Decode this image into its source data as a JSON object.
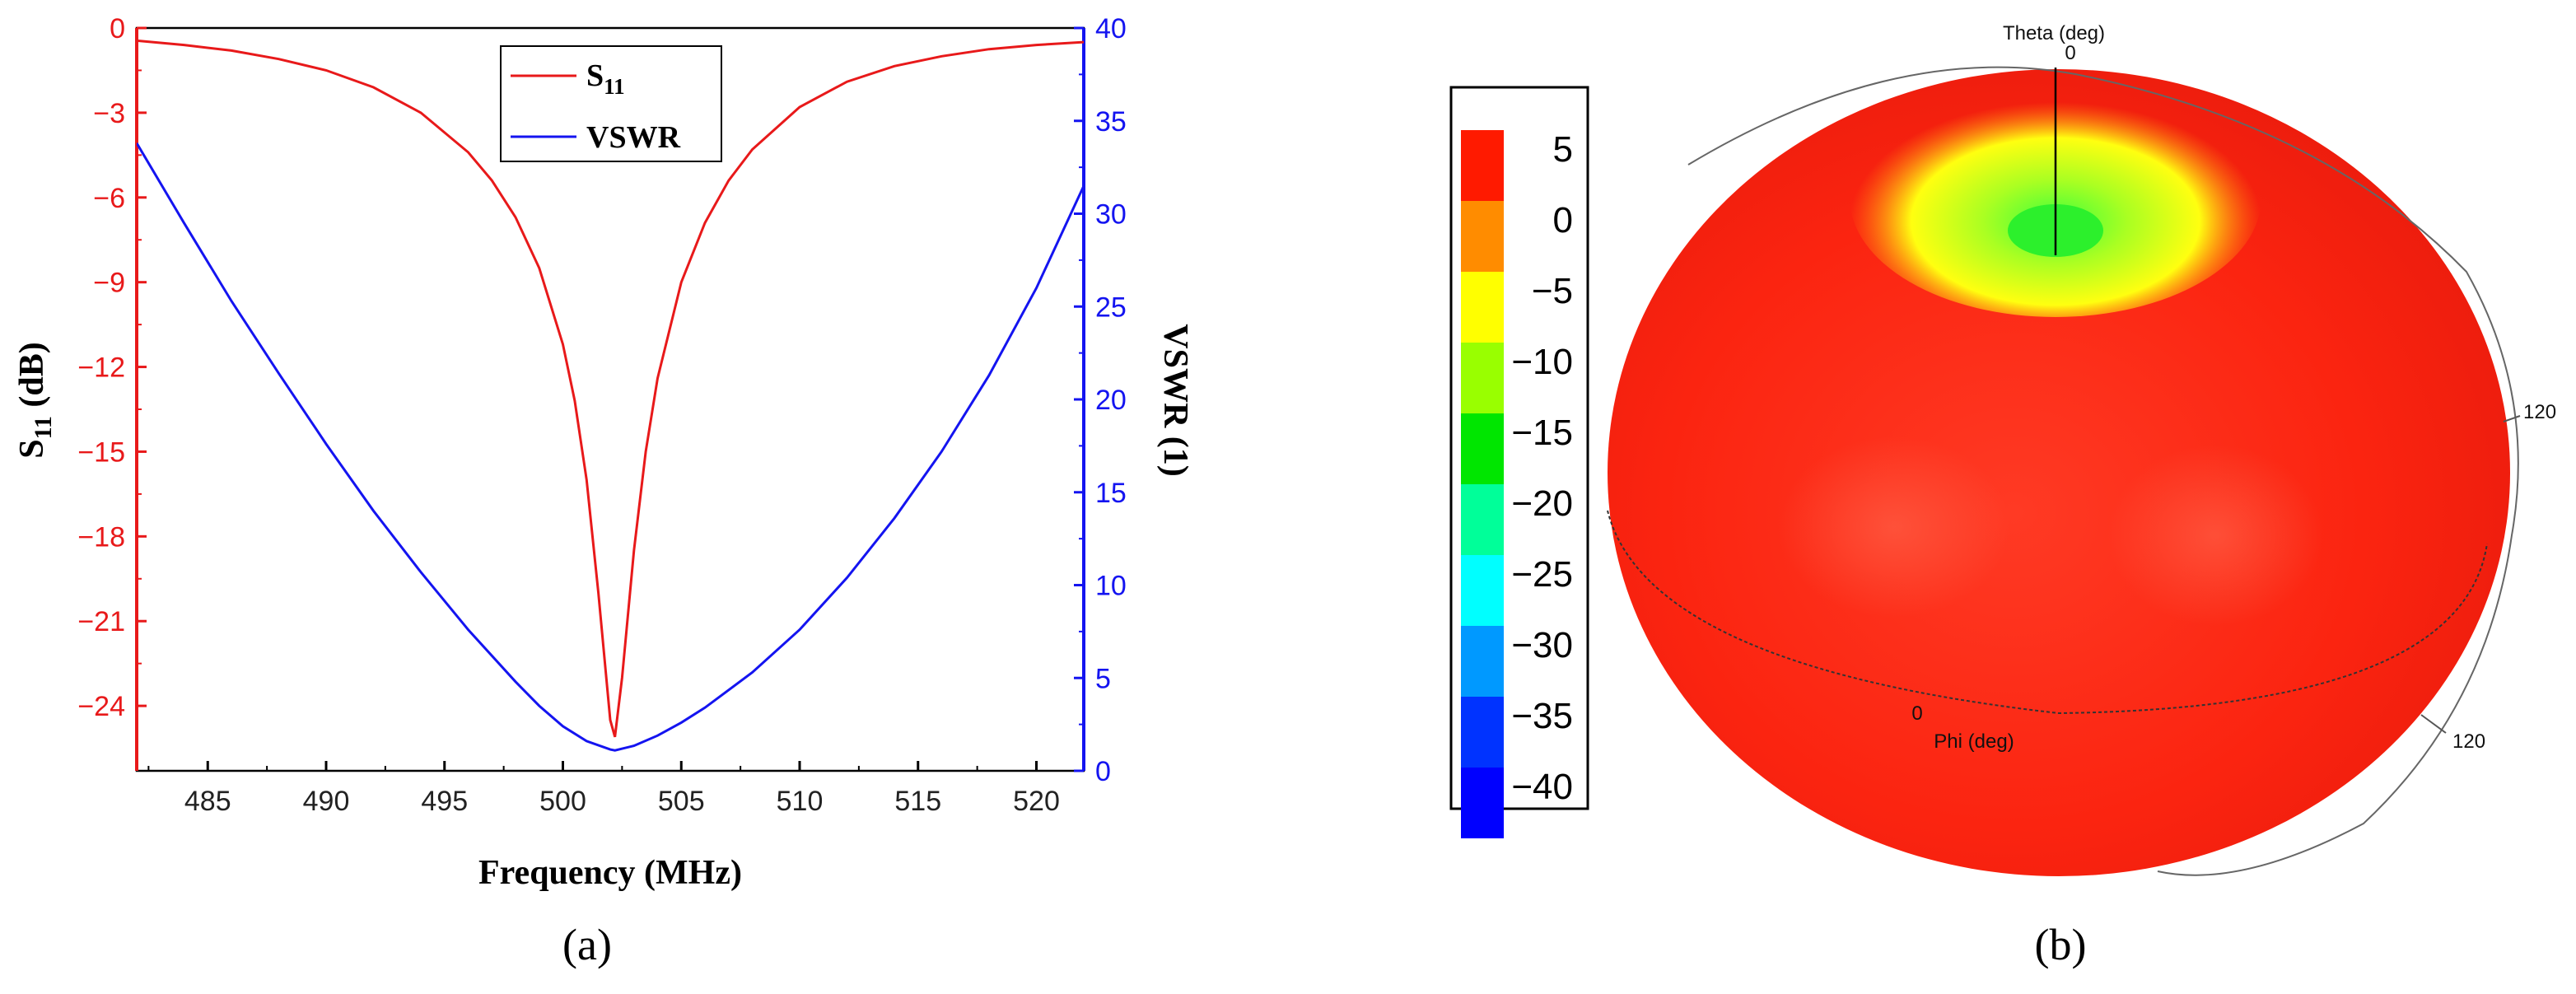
{
  "chart_data": [
    {
      "type": "line",
      "panel_label": "(a)",
      "xlabel": "Frequency (MHz)",
      "xlim": [
        482,
        522
      ],
      "xticks": [
        485,
        490,
        495,
        500,
        505,
        510,
        515,
        520
      ],
      "ylabel_left": {
        "main": "S",
        "sub": "11",
        "rest": " (dB)"
      },
      "ylim_left": [
        -26.3,
        0
      ],
      "yticks_left": [
        0,
        -3,
        -6,
        -9,
        -12,
        -15,
        -18,
        -21,
        -24
      ],
      "ylabel_right": "VSWR (1)",
      "ylim_right": [
        0,
        40
      ],
      "yticks_right": [
        0,
        5,
        10,
        15,
        20,
        25,
        30,
        35,
        40
      ],
      "legend_position": "top-center",
      "colors": {
        "s11": "#e8191a",
        "vswr": "#1414f0"
      },
      "series": [
        {
          "name": "S11",
          "legend_main": "S",
          "legend_sub": "11",
          "axis": "left",
          "color": "#e8191a",
          "x": [
            482,
            484,
            486,
            488,
            490,
            492,
            494,
            496,
            497,
            498,
            499,
            500,
            500.5,
            501,
            501.5,
            502,
            502.2,
            502.5,
            503,
            503.5,
            504,
            505,
            506,
            507,
            508,
            510,
            512,
            514,
            516,
            518,
            520,
            522
          ],
          "y": [
            -0.45,
            -0.6,
            -0.8,
            -1.1,
            -1.5,
            -2.1,
            -3.0,
            -4.4,
            -5.4,
            -6.7,
            -8.5,
            -11.2,
            -13.2,
            -16.0,
            -20.0,
            -24.5,
            -25.1,
            -23.0,
            -18.5,
            -15.0,
            -12.4,
            -9.0,
            -6.9,
            -5.4,
            -4.3,
            -2.8,
            -1.9,
            -1.35,
            -1.0,
            -0.75,
            -0.6,
            -0.5
          ]
        },
        {
          "name": "VSWR",
          "legend_main": "VSWR",
          "axis": "right",
          "color": "#1414f0",
          "x": [
            482,
            484,
            486,
            488,
            490,
            492,
            494,
            496,
            498,
            499,
            500,
            501,
            502,
            502.2,
            503,
            504,
            505,
            506,
            508,
            510,
            512,
            514,
            516,
            518,
            520,
            522
          ],
          "y": [
            33.8,
            29.5,
            25.3,
            21.4,
            17.6,
            14.0,
            10.7,
            7.6,
            4.8,
            3.5,
            2.4,
            1.6,
            1.15,
            1.1,
            1.35,
            1.9,
            2.6,
            3.4,
            5.3,
            7.6,
            10.4,
            13.6,
            17.2,
            21.3,
            26.0,
            31.5
          ]
        }
      ]
    },
    {
      "type": "heatmap",
      "panel_label": "(b)",
      "description_type": "3d-radiation-pattern",
      "colorbar": {
        "labels": [
          "5",
          "0",
          "−5",
          "−10",
          "−15",
          "−20",
          "−25",
          "−30",
          "−35",
          "−40"
        ],
        "colors": [
          "#ff1a00",
          "#ff8c00",
          "#ffff00",
          "#99ff00",
          "#00e600",
          "#00ff99",
          "#00ffff",
          "#0099ff",
          "#0033ff",
          "#0000ff"
        ]
      },
      "annotations": {
        "theta_axis": "Theta (deg)",
        "theta_zero": "0",
        "theta_120": "120",
        "phi_axis": "Phi (deg)",
        "phi_zero": "0",
        "phi_120": "120"
      }
    }
  ]
}
